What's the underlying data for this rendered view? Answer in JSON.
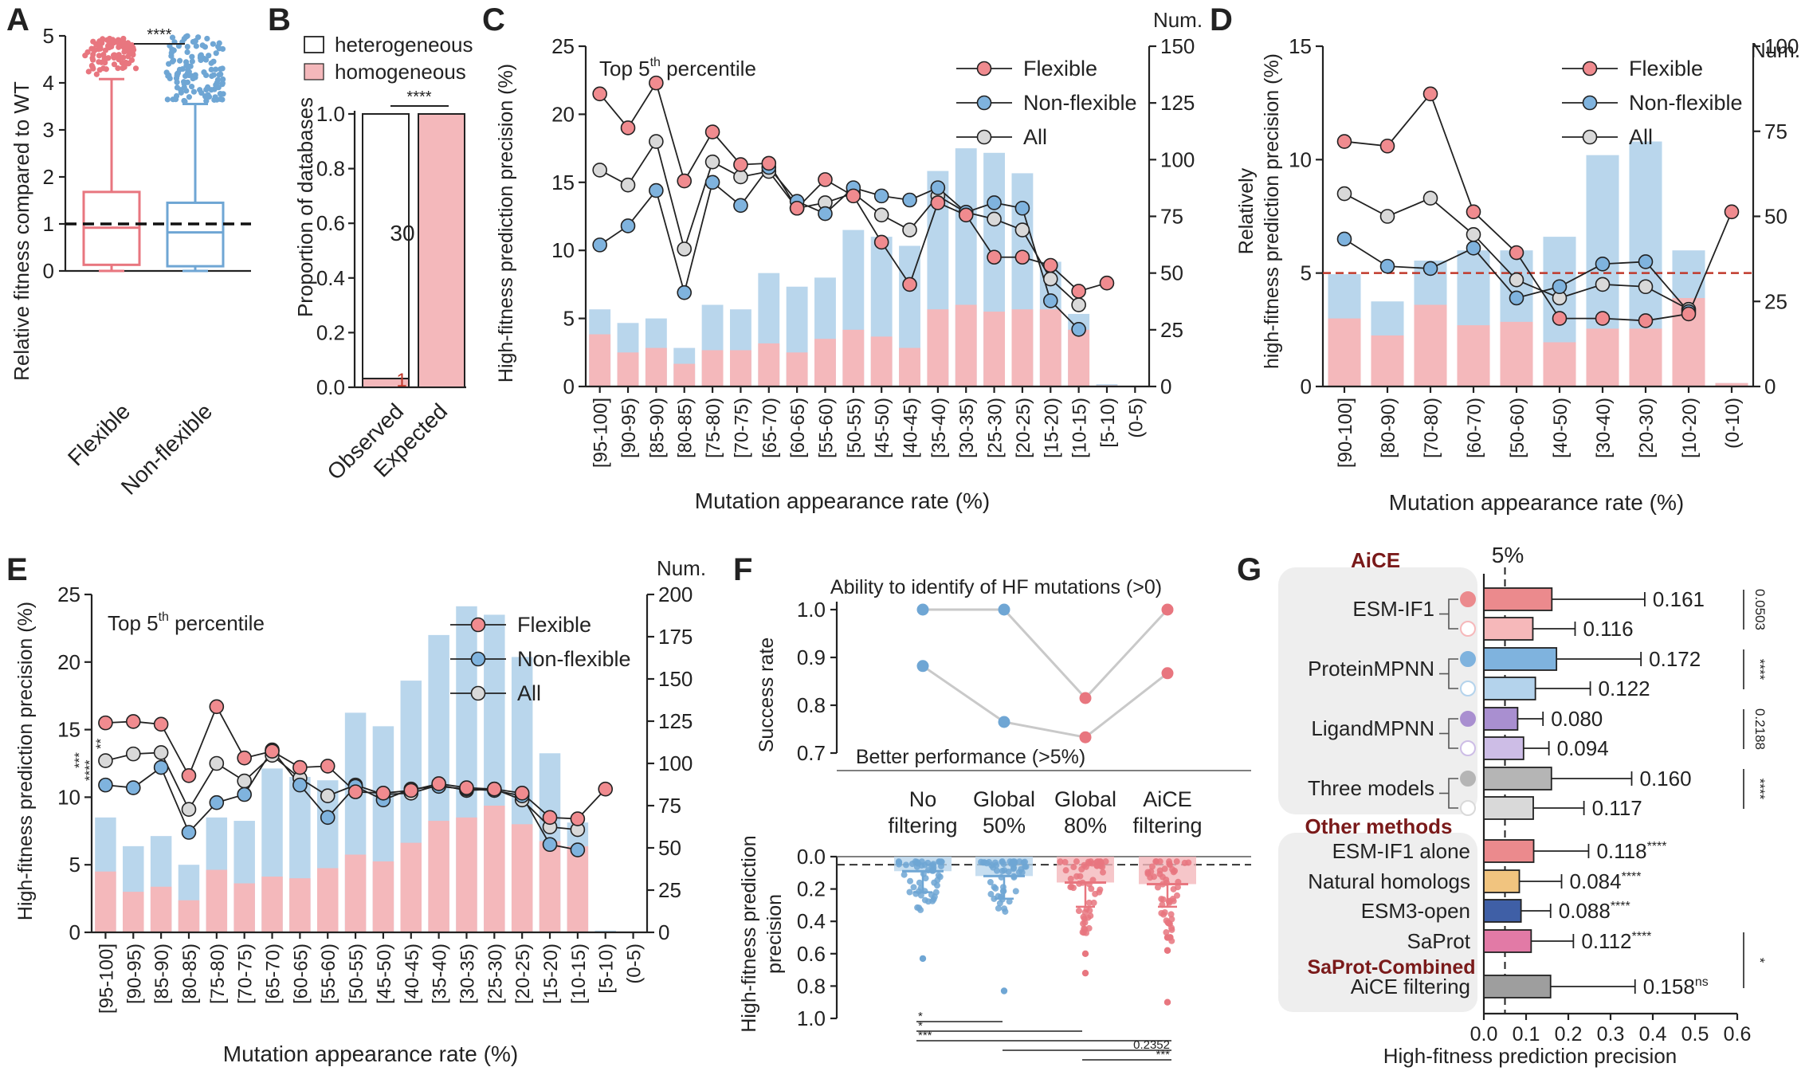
{
  "colors": {
    "flex": "#e8767f",
    "flex_face": "#f08b8f",
    "flex_bar": "#f4b8bb",
    "nonflex": "#6fa6d4",
    "nonflex_face": "#7fb3de",
    "nonflex_bar": "#b9d6ec",
    "all_face": "#d9d9d9",
    "dark": "#222222",
    "maroon": "#7a1a1a",
    "ref_red": "#c0392b"
  },
  "chart_data": [
    {
      "id": "A",
      "type": "boxplot",
      "panel": "A",
      "ylabel": "Relative fitness compared to WT",
      "ylim": [
        0,
        5
      ],
      "yticks": [
        0,
        1,
        2,
        3,
        4,
        5
      ],
      "categories": [
        "Flexible",
        "Non-flexible"
      ],
      "boxes": [
        {
          "name": "Flexible",
          "min": 0.0,
          "q1": 0.13,
          "median": 0.92,
          "q3": 1.68,
          "whisker_high": 4.08
        },
        {
          "name": "Non-flexible",
          "min": 0.0,
          "q1": 0.1,
          "median": 0.82,
          "q3": 1.45,
          "whisker_high": 3.55
        }
      ],
      "reference_line": 1,
      "significance": "****"
    },
    {
      "id": "B",
      "type": "bar",
      "panel": "B",
      "ylabel": "Proportion of databases",
      "ylim": [
        0,
        1.0
      ],
      "yticks": [
        0.0,
        0.2,
        0.4,
        0.6,
        0.8,
        1.0
      ],
      "categories": [
        "Observed",
        "Expected"
      ],
      "legend": [
        "heterogeneous",
        "homogeneous"
      ],
      "series": [
        {
          "name": "homogeneous",
          "values": [
            0.032,
            1.0
          ]
        },
        {
          "name": "heterogeneous",
          "values": [
            0.968,
            0.0
          ]
        }
      ],
      "annotations": [
        "30",
        "1"
      ],
      "significance": "****"
    },
    {
      "id": "C",
      "type": "line+bar",
      "panel": "C",
      "title": "Top 5th percentile",
      "xlabel": "Mutation appearance rate (%)",
      "ylabel": "High-fitness prediction precision (%)",
      "ylim": [
        0,
        25
      ],
      "yticks": [
        0,
        5,
        10,
        15,
        20,
        25
      ],
      "y2label": "Num.",
      "y2lim": [
        0,
        150
      ],
      "y2ticks": [
        0,
        25,
        50,
        75,
        100,
        125,
        150
      ],
      "categories": [
        "[95-100]",
        "[90-95)",
        "[85-90)",
        "[80-85)",
        "[75-80)",
        "[70-75)",
        "[65-70)",
        "[60-65)",
        "[55-60)",
        "[50-55)",
        "[45-50)",
        "[40-45)",
        "[35-40)",
        "[30-35)",
        "[25-30)",
        "[20-25)",
        "[15-20)",
        "[10-15)",
        "[5-10)",
        "(0-5)"
      ],
      "bars_all_num": [
        34,
        28,
        30,
        17,
        36,
        34,
        50,
        44,
        48,
        69,
        66,
        62,
        95,
        105,
        103,
        94,
        55,
        32,
        1,
        0
      ],
      "bars_flex_num": [
        23,
        15,
        17,
        10,
        16,
        16,
        19,
        15,
        21,
        25,
        22,
        17,
        34,
        36,
        33,
        34,
        34,
        25,
        0.5,
        0
      ],
      "series": [
        {
          "name": "Flexible",
          "values": [
            21.5,
            19.0,
            22.3,
            15.1,
            18.7,
            16.3,
            16.4,
            13.1,
            15.2,
            14.0,
            10.6,
            7.5,
            13.5,
            12.6,
            9.5,
            9.5,
            8.9,
            7.0,
            7.6,
            null
          ]
        },
        {
          "name": "Non-flexible",
          "values": [
            10.4,
            11.8,
            14.4,
            6.9,
            15.0,
            13.3,
            16.1,
            13.6,
            12.7,
            14.6,
            14.0,
            13.7,
            14.6,
            12.8,
            13.5,
            13.1,
            6.3,
            4.2,
            null,
            null
          ]
        },
        {
          "name": "All",
          "values": [
            15.9,
            14.8,
            18.0,
            10.1,
            16.5,
            15.4,
            15.8,
            13.1,
            13.5,
            14.2,
            12.6,
            11.5,
            14.0,
            12.8,
            12.3,
            11.5,
            7.9,
            6.0,
            null,
            null
          ]
        }
      ]
    },
    {
      "id": "D",
      "type": "line+bar",
      "panel": "D",
      "xlabel": "Mutation appearance rate (%)",
      "ylabel": "Relatively high-fitness prediction precision (%)",
      "ylim": [
        0,
        15
      ],
      "yticks": [
        0,
        5,
        10,
        15
      ],
      "y2label": "Num.",
      "y2lim": [
        0,
        100
      ],
      "y2ticks": [
        0,
        25,
        50,
        75,
        100
      ],
      "categories": [
        "[90-100]",
        "[80-90)",
        "[70-80)",
        "[60-70)",
        "[50-60)",
        "[40-50)",
        "[30-40)",
        "[20-30)",
        "[10-20)",
        "(0-10)"
      ],
      "bars_all_num": [
        33,
        25,
        37,
        40,
        40,
        44,
        68,
        72,
        40,
        1
      ],
      "bars_flex_num": [
        20,
        15,
        24,
        18,
        19,
        13,
        17,
        17,
        26,
        1
      ],
      "series": [
        {
          "name": "Flexible",
          "values": [
            10.8,
            10.6,
            12.9,
            7.7,
            5.9,
            3.0,
            3.0,
            2.9,
            3.2,
            7.7
          ]
        },
        {
          "name": "Non-flexible",
          "values": [
            6.5,
            5.3,
            5.2,
            6.1,
            3.9,
            4.4,
            5.4,
            5.5,
            3.3,
            null
          ]
        },
        {
          "name": "All",
          "values": [
            8.5,
            7.5,
            8.3,
            6.7,
            4.7,
            3.9,
            4.5,
            4.4,
            3.4,
            null
          ]
        }
      ],
      "reference_line": 5
    },
    {
      "id": "E",
      "type": "line+bar",
      "panel": "E",
      "title": "Top 5th percentile",
      "xlabel": "Mutation appearance rate (%)",
      "ylabel": "High-fitness prediction precision (%)",
      "ylim": [
        0,
        25
      ],
      "yticks": [
        0,
        5,
        10,
        15,
        20,
        25
      ],
      "y2label": "Num.",
      "y2lim": [
        0,
        200
      ],
      "y2ticks": [
        0,
        25,
        50,
        75,
        100,
        125,
        150,
        175,
        200
      ],
      "categories": [
        "[95-100]",
        "[90-95)",
        "[85-90)",
        "[80-85)",
        "[75-80)",
        "[70-75)",
        "[65-70)",
        "[60-65)",
        "[55-60)",
        "[50-55)",
        "[45-50)",
        "[40-45)",
        "[35-40)",
        "[30-35)",
        "[25-30)",
        "[20-25)",
        "[15-20)",
        "[10-15)",
        "[5-10)",
        "(0-5)"
      ],
      "bars_all_num": [
        68,
        51,
        57,
        40,
        68,
        66,
        97,
        92,
        90,
        130,
        122,
        149,
        176,
        193,
        188,
        163,
        106,
        65,
        1,
        0
      ],
      "bars_flex_num": [
        36,
        24,
        27,
        19,
        37,
        29,
        33,
        32,
        38,
        46,
        42,
        53,
        66,
        68,
        75,
        64,
        54,
        51,
        0.5,
        0
      ],
      "series": [
        {
          "name": "Flexible",
          "values": [
            15.5,
            15.6,
            15.4,
            11.6,
            16.7,
            12.9,
            13.4,
            12.2,
            12.3,
            10.4,
            10.3,
            10.5,
            11.0,
            10.7,
            10.6,
            10.3,
            8.5,
            8.4,
            10.6,
            null
          ]
        },
        {
          "name": "Non-flexible",
          "values": [
            10.9,
            10.7,
            12.2,
            7.4,
            9.6,
            10.2,
            13.5,
            10.9,
            8.5,
            10.8,
            9.8,
            10.6,
            10.8,
            10.6,
            10.5,
            10.1,
            6.5,
            6.1,
            null,
            null
          ]
        },
        {
          "name": "All",
          "values": [
            12.7,
            13.2,
            13.3,
            9.1,
            12.5,
            11.2,
            13.1,
            11.4,
            10.1,
            10.9,
            10.2,
            10.3,
            10.9,
            10.5,
            10.6,
            9.8,
            7.8,
            7.6,
            null,
            null
          ]
        }
      ],
      "significance_left": [
        "***",
        "**",
        "****"
      ]
    },
    {
      "id": "F",
      "type": "dot+strip",
      "panel": "F",
      "top_title": "Ability to identify of HF mutations (>0)",
      "top_bottom_label": "Better performance (>5%)",
      "top_ylabel": "Success rate",
      "top_ylim": [
        0.7,
        1.0
      ],
      "top_yticks": [
        0.7,
        0.8,
        0.9,
        1.0
      ],
      "categories": [
        "No filtering",
        "Global 50%",
        "Global 80%",
        "AiCE filtering"
      ],
      "category_lines": [
        [
          "No",
          "filtering"
        ],
        [
          "Global",
          "50%"
        ],
        [
          "Global",
          "80%"
        ],
        [
          "AiCE",
          "filtering"
        ]
      ],
      "ability_values": [
        1.0,
        1.0,
        0.815,
        1.0
      ],
      "better_values": [
        0.882,
        0.765,
        0.733,
        0.867
      ],
      "bottom_ylabel": "High-fitness prediction precision",
      "bottom_ylim": [
        1.0,
        0.0
      ],
      "bottom_yticks": [
        0.0,
        0.2,
        0.4,
        0.6,
        0.8,
        1.0
      ],
      "bottom_means": [
        0.09,
        0.12,
        0.16,
        0.17
      ],
      "bottom_sd_high": [
        0.22,
        0.26,
        0.31,
        0.31
      ],
      "reference_line": 0.05,
      "comparisons": [
        {
          "pair": [
            "No filtering",
            "Global 50%"
          ],
          "label": "*"
        },
        {
          "pair": [
            "No filtering",
            "Global 80%"
          ],
          "label": "*"
        },
        {
          "pair": [
            "No filtering",
            "AiCE filtering"
          ],
          "label": "***"
        },
        {
          "pair": [
            "Global 50%",
            "AiCE filtering"
          ],
          "label": "0.2352"
        },
        {
          "pair": [
            "Global 80%",
            "AiCE filtering"
          ],
          "label": "***"
        }
      ]
    },
    {
      "id": "G",
      "type": "horizontal-bar",
      "panel": "G",
      "xlabel": "High-fitness prediction precision",
      "xlim": [
        0,
        0.6
      ],
      "xticks": [
        0.0,
        0.1,
        0.2,
        0.3,
        0.4,
        0.5,
        0.6
      ],
      "reference_line": 0.05,
      "reference_label": "5%",
      "groups": [
        "AiCE",
        "Other methods",
        "SaProt-Combined"
      ],
      "rows": [
        {
          "name": "ESM-IF1",
          "variant": "with",
          "value": 0.161,
          "sd": 0.22,
          "label": "0.161",
          "color": "#eb8a8d"
        },
        {
          "name": "ESM-IF1",
          "variant": "without",
          "value": 0.116,
          "sd": 0.1,
          "label": "0.116",
          "color": "#f6b8ba"
        },
        {
          "name": "ProteinMPNN",
          "variant": "with",
          "value": 0.172,
          "sd": 0.2,
          "label": "0.172",
          "color": "#7fb3de"
        },
        {
          "name": "ProteinMPNN",
          "variant": "without",
          "value": 0.122,
          "sd": 0.13,
          "label": "0.122",
          "color": "#b4d3ec"
        },
        {
          "name": "LigandMPNN",
          "variant": "with",
          "value": 0.08,
          "sd": 0.06,
          "label": "0.080",
          "color": "#a98fd0"
        },
        {
          "name": "LigandMPNN",
          "variant": "without",
          "value": 0.094,
          "sd": 0.06,
          "label": "0.094",
          "color": "#cdbde6"
        },
        {
          "name": "Three models",
          "variant": "with",
          "value": 0.16,
          "sd": 0.19,
          "label": "0.160",
          "color": "#b5b5b5"
        },
        {
          "name": "Three models",
          "variant": "without",
          "value": 0.117,
          "sd": 0.12,
          "label": "0.117",
          "color": "#d9d9d9"
        },
        {
          "name": "ESM-IF1 alone",
          "value": 0.118,
          "sd": 0.13,
          "label": "0.118",
          "sig": "****",
          "color": "#eb8a8d"
        },
        {
          "name": "Natural homologs",
          "value": 0.084,
          "sd": 0.1,
          "label": "0.084",
          "sig": "****",
          "color": "#f1c47f"
        },
        {
          "name": "ESM3-open",
          "value": 0.088,
          "sd": 0.07,
          "label": "0.088",
          "sig": "****",
          "color": "#3f5fa6"
        },
        {
          "name": "SaProt",
          "value": 0.112,
          "sd": 0.1,
          "label": "0.112",
          "sig": "****",
          "color": "#e27aa6"
        },
        {
          "name": "AiCE filtering",
          "value": 0.158,
          "sd": 0.2,
          "label": "0.158",
          "sig": "ns",
          "color": "#9e9e9e"
        }
      ],
      "right_brackets": [
        "0.0503",
        "****",
        "0.2188",
        "****",
        "*"
      ]
    }
  ],
  "labels": {
    "A": {
      "panel": "A",
      "ylabel": "Relative fitness compared to WT",
      "cat1": "Flexible",
      "cat2": "Non-flexible",
      "sig": "****"
    },
    "B": {
      "panel": "B",
      "ylabel": "Proportion of databases",
      "leg1": "heterogeneous",
      "leg2": "homogeneous",
      "cat1": "Observed",
      "cat2": "Expected",
      "n_obs": "30",
      "n_hom": "1",
      "sig": "****"
    },
    "C": {
      "panel": "C",
      "title": "Top 5",
      "title_sup": "th",
      "title_end": " percentile",
      "ylabel": "High-fitness prediction precision (%)",
      "y2label": "Num.",
      "xlabel": "Mutation appearance rate (%)",
      "leg_flex": "Flexible",
      "leg_non": "Non-flexible",
      "leg_all": "All"
    },
    "D": {
      "panel": "D",
      "ylabel1": "Relatively",
      "ylabel2": "high-fitness prediction precision (%)",
      "y2label": "Num.",
      "xlabel": "Mutation appearance rate (%)",
      "leg_flex": "Flexible",
      "leg_non": "Non-flexible",
      "leg_all": "All"
    },
    "E": {
      "panel": "E",
      "title": "Top 5",
      "title_sup": "th",
      "title_end": " percentile",
      "ylabel": "High-fitness prediction precision (%)",
      "y2label": "Num.",
      "xlabel": "Mutation appearance rate (%)",
      "leg_flex": "Flexible",
      "leg_non": "Non-flexible",
      "leg_all": "All",
      "sig1": "***",
      "sig2": "**",
      "sig3": "****"
    },
    "F": {
      "panel": "F",
      "top_title": "Ability to identify of HF mutations (>0)",
      "bottom_note": "Better performance (>5%)",
      "top_ylabel": "Success rate",
      "bottom_ylabel1": "High-fitness prediction",
      "bottom_ylabel2": "precision",
      "cmp1": "*",
      "cmp2": "*",
      "cmp3": "***",
      "cmp4": "0.2352",
      "cmp5": "***"
    },
    "G": {
      "panel": "G",
      "ref_label": "5%",
      "xlabel": "High-fitness prediction precision",
      "grp1": "AiCE",
      "grp2": "Other methods",
      "grp3": "SaProt-Combined",
      "m1": "ESM-IF1",
      "m2": "ProteinMPNN",
      "m3": "LigandMPNN",
      "m4": "Three models",
      "br1": "0.0503",
      "br2": "****",
      "br3": "0.2188",
      "br4": "****",
      "br5": "*"
    }
  }
}
